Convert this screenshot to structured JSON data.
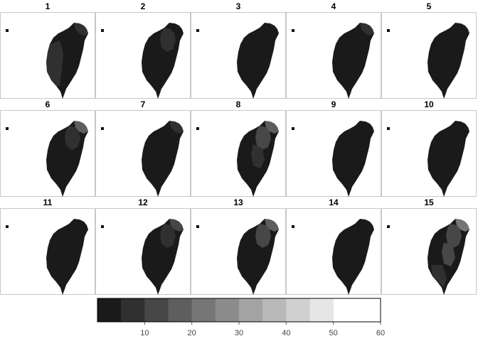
{
  "chart_data": {
    "type": "heatmap",
    "layout": {
      "rows": 3,
      "cols": 5
    },
    "facets": [
      {
        "label": "1",
        "base_level": 1,
        "patches": [
          {
            "region": "west-central",
            "level": 2
          },
          {
            "region": "northeast-tip",
            "level": 2
          }
        ]
      },
      {
        "label": "2",
        "base_level": 1,
        "patches": [
          {
            "region": "north",
            "level": 2
          }
        ]
      },
      {
        "label": "3",
        "base_level": 1,
        "patches": []
      },
      {
        "label": "4",
        "base_level": 1,
        "patches": [
          {
            "region": "northeast-tip",
            "level": 2
          }
        ]
      },
      {
        "label": "5",
        "base_level": 1,
        "patches": []
      },
      {
        "label": "6",
        "base_level": 1,
        "patches": [
          {
            "region": "northeast-tip",
            "level": 4
          },
          {
            "region": "north",
            "level": 2
          }
        ]
      },
      {
        "label": "7",
        "base_level": 1,
        "patches": [
          {
            "region": "northeast-tip",
            "level": 2
          }
        ]
      },
      {
        "label": "8",
        "base_level": 1,
        "patches": [
          {
            "region": "northeast-tip",
            "level": 4
          },
          {
            "region": "north",
            "level": 3
          },
          {
            "region": "central",
            "level": 2
          }
        ]
      },
      {
        "label": "9",
        "base_level": 1,
        "patches": []
      },
      {
        "label": "10",
        "base_level": 1,
        "patches": []
      },
      {
        "label": "11",
        "base_level": 1,
        "patches": []
      },
      {
        "label": "12",
        "base_level": 1,
        "patches": [
          {
            "region": "northeast-tip",
            "level": 3
          },
          {
            "region": "north",
            "level": 2
          }
        ]
      },
      {
        "label": "13",
        "base_level": 1,
        "patches": [
          {
            "region": "northeast-tip",
            "level": 4
          },
          {
            "region": "north",
            "level": 3
          }
        ]
      },
      {
        "label": "14",
        "base_level": 1,
        "patches": []
      },
      {
        "label": "15",
        "base_level": 1,
        "patches": [
          {
            "region": "northeast-tip",
            "level": 5
          },
          {
            "region": "north",
            "level": 3
          },
          {
            "region": "central",
            "level": 3
          },
          {
            "region": "south",
            "level": 2
          }
        ]
      }
    ],
    "legend": {
      "position": "bottom",
      "breaks": [
        0,
        5,
        10,
        15,
        20,
        25,
        30,
        35,
        40,
        45,
        50,
        55,
        60
      ],
      "tick_labels": [
        "10",
        "20",
        "30",
        "40",
        "50",
        "60"
      ],
      "tick_values": [
        10,
        20,
        30,
        40,
        50,
        60
      ],
      "colors": [
        "#1a1a1a",
        "#303030",
        "#474747",
        "#5e5e5e",
        "#767676",
        "#8c8c8c",
        "#a3a3a3",
        "#b9b9b9",
        "#d0d0d0",
        "#e6e6e6"
      ]
    },
    "panel_border_color": "#c8c8c8"
  }
}
